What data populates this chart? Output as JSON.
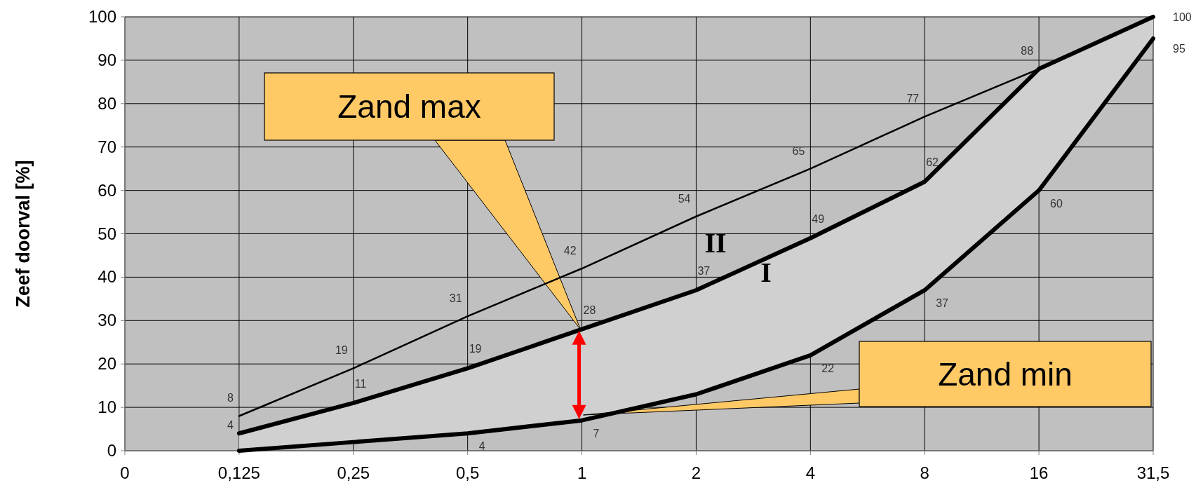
{
  "chart_data": {
    "type": "line",
    "ylabel": "Zeef doorval [%]",
    "categories": [
      "0",
      "0,125",
      "0,25",
      "0,5",
      "1",
      "2",
      "4",
      "8",
      "16",
      "31,5"
    ],
    "series": [
      {
        "color": "#000000",
        "values": [
          null,
          8,
          19,
          31,
          42,
          54,
          65,
          77,
          88,
          100
        ],
        "value_labels": [
          null,
          "8",
          "19",
          "31",
          "42",
          "54",
          "65",
          "77",
          "88",
          "100"
        ]
      },
      {
        "color": "#000000",
        "values": [
          null,
          4,
          11,
          19,
          28,
          37,
          49,
          62,
          88,
          100
        ],
        "value_labels": [
          null,
          "4",
          "11",
          "19",
          "28",
          "37",
          "49",
          "62",
          null,
          null
        ],
        "lower": [
          null,
          0,
          2,
          4,
          7,
          13,
          22,
          37,
          60,
          95
        ],
        "upper": [
          null,
          4,
          11,
          19,
          28,
          37,
          49,
          62,
          88,
          100
        ]
      },
      {
        "color": "#000000",
        "values": [
          null,
          0,
          2,
          4,
          7,
          13,
          22,
          37,
          60,
          95
        ],
        "value_labels": [
          null,
          null,
          null,
          "4",
          "7",
          null,
          "22",
          "37",
          "60",
          "95"
        ]
      }
    ],
    "ylim": [
      0,
      100
    ],
    "yticks": [
      0,
      10,
      20,
      30,
      40,
      50,
      60,
      70,
      80,
      90,
      100
    ],
    "grid": true,
    "marker": "none",
    "line_style": "solid",
    "annotations": [
      "Zand max",
      "Zand min",
      "II",
      "I"
    ]
  }
}
